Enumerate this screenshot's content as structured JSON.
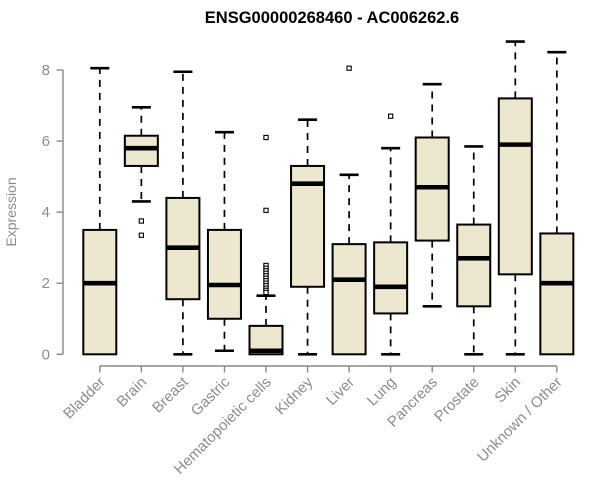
{
  "title": "ENSG00000268460 - AC006262.6",
  "chart_data": {
    "type": "boxplot",
    "title": "ENSG00000268460 - AC006262.6",
    "xlabel": "",
    "ylabel": "Expression",
    "ylim": [
      0,
      8.9
    ],
    "yticks": [
      0,
      2,
      4,
      6,
      8
    ],
    "grid": false,
    "legend": "none",
    "categories": [
      "Bladder",
      "Brain",
      "Breast",
      "Gastric",
      "Hematopoietic cells",
      "Kidney",
      "Liver",
      "Lung",
      "Pancreas",
      "Prostate",
      "Skin",
      "Unknown / Other"
    ],
    "boxes": [
      {
        "category": "Bladder",
        "whisker_low": 0,
        "q1": 0,
        "median": 2.0,
        "q3": 3.5,
        "whisker_high": 8.05,
        "outliers": []
      },
      {
        "category": "Brain",
        "whisker_low": 4.3,
        "q1": 5.3,
        "median": 5.8,
        "q3": 6.15,
        "whisker_high": 6.95,
        "outliers": [
          3.75,
          3.35
        ]
      },
      {
        "category": "Breast",
        "whisker_low": 0,
        "q1": 1.55,
        "median": 3.0,
        "q3": 4.4,
        "whisker_high": 7.95,
        "outliers": []
      },
      {
        "category": "Gastric",
        "whisker_low": 0.1,
        "q1": 1.0,
        "median": 1.95,
        "q3": 3.5,
        "whisker_high": 6.25,
        "outliers": []
      },
      {
        "category": "Hematopoietic cells",
        "whisker_low": 0,
        "q1": 0,
        "median": 0.1,
        "q3": 0.8,
        "whisker_high": 1.65,
        "outliers": [
          6.1,
          4.05,
          2.5,
          2.42,
          2.35,
          2.28,
          2.21,
          2.14,
          2.07,
          2.0,
          1.93,
          1.86,
          1.8,
          1.74
        ]
      },
      {
        "category": "Kidney",
        "whisker_low": 0,
        "q1": 1.9,
        "median": 4.8,
        "q3": 5.3,
        "whisker_high": 6.6,
        "outliers": []
      },
      {
        "category": "Liver",
        "whisker_low": 0,
        "q1": 0,
        "median": 2.1,
        "q3": 3.1,
        "whisker_high": 5.05,
        "outliers": [
          8.05
        ]
      },
      {
        "category": "Lung",
        "whisker_low": 0,
        "q1": 1.15,
        "median": 1.9,
        "q3": 3.15,
        "whisker_high": 5.8,
        "outliers": [
          6.7
        ]
      },
      {
        "category": "Pancreas",
        "whisker_low": 1.35,
        "q1": 3.2,
        "median": 4.7,
        "q3": 6.1,
        "whisker_high": 7.6,
        "outliers": []
      },
      {
        "category": "Prostate",
        "whisker_low": 0,
        "q1": 1.35,
        "median": 2.7,
        "q3": 3.65,
        "whisker_high": 5.85,
        "outliers": []
      },
      {
        "category": "Skin",
        "whisker_low": 0,
        "q1": 2.25,
        "median": 5.9,
        "q3": 7.2,
        "whisker_high": 8.8,
        "outliers": []
      },
      {
        "category": "Unknown / Other",
        "whisker_low": 0,
        "q1": 0,
        "median": 2.0,
        "q3": 3.4,
        "whisker_high": 8.5,
        "outliers": []
      }
    ]
  },
  "colors": {
    "box_fill": "#EDE7CF",
    "box_border": "#000000",
    "median": "#000000",
    "whisker": "#000000",
    "outlier_fill": "#FFFFFF",
    "axis": "#888888",
    "tick_label": "#8C8C8C",
    "title": "#000000",
    "background": "#FFFFFF"
  }
}
